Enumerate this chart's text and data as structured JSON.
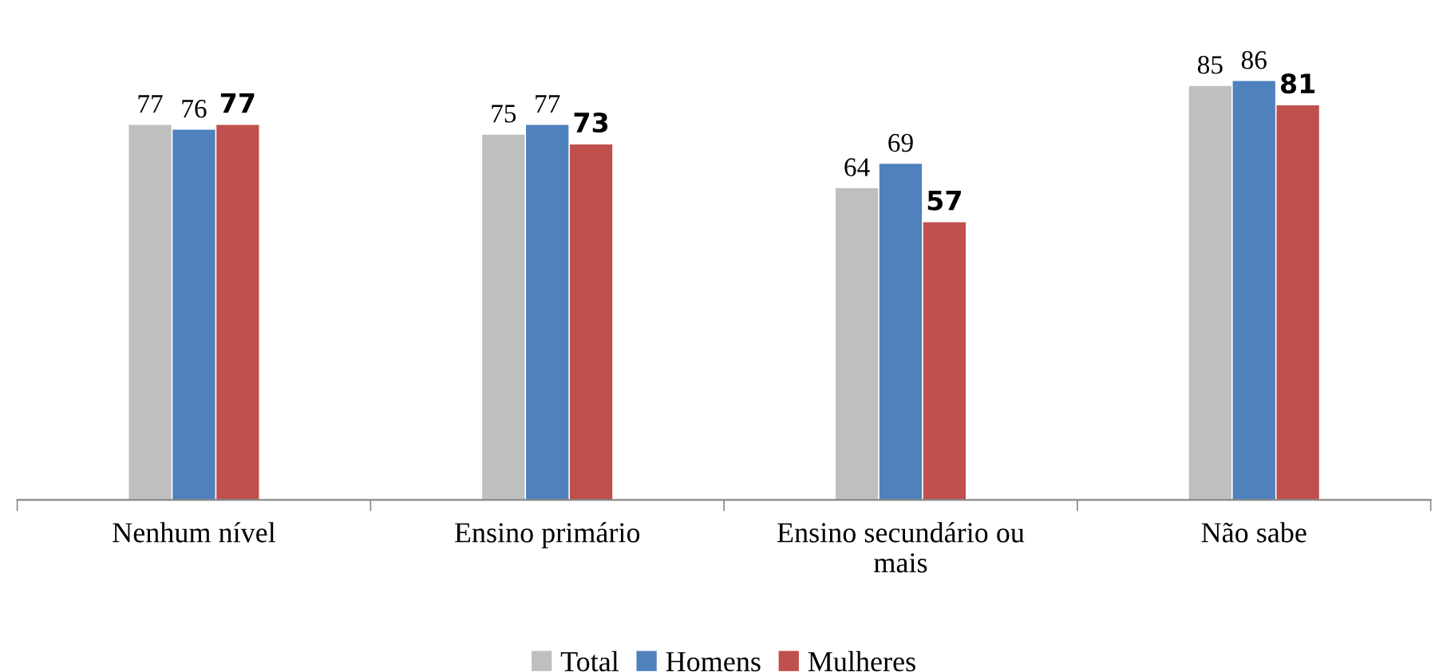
{
  "chart_data": {
    "type": "bar",
    "categories": [
      "Nenhum nível",
      "Ensino primário",
      "Ensino secundário ou\nmais",
      "Não sabe"
    ],
    "series": [
      {
        "name": "Total",
        "color": "#bfbfbf",
        "values": [
          77,
          75,
          64,
          85
        ]
      },
      {
        "name": "Homens",
        "color": "#4f81bd",
        "values": [
          76,
          77,
          69,
          86
        ]
      },
      {
        "name": "Mulheres",
        "color": "#c0504d",
        "values": [
          77,
          73,
          57,
          81
        ]
      }
    ],
    "data_labels": true,
    "legend": "bottom",
    "grid": false
  }
}
